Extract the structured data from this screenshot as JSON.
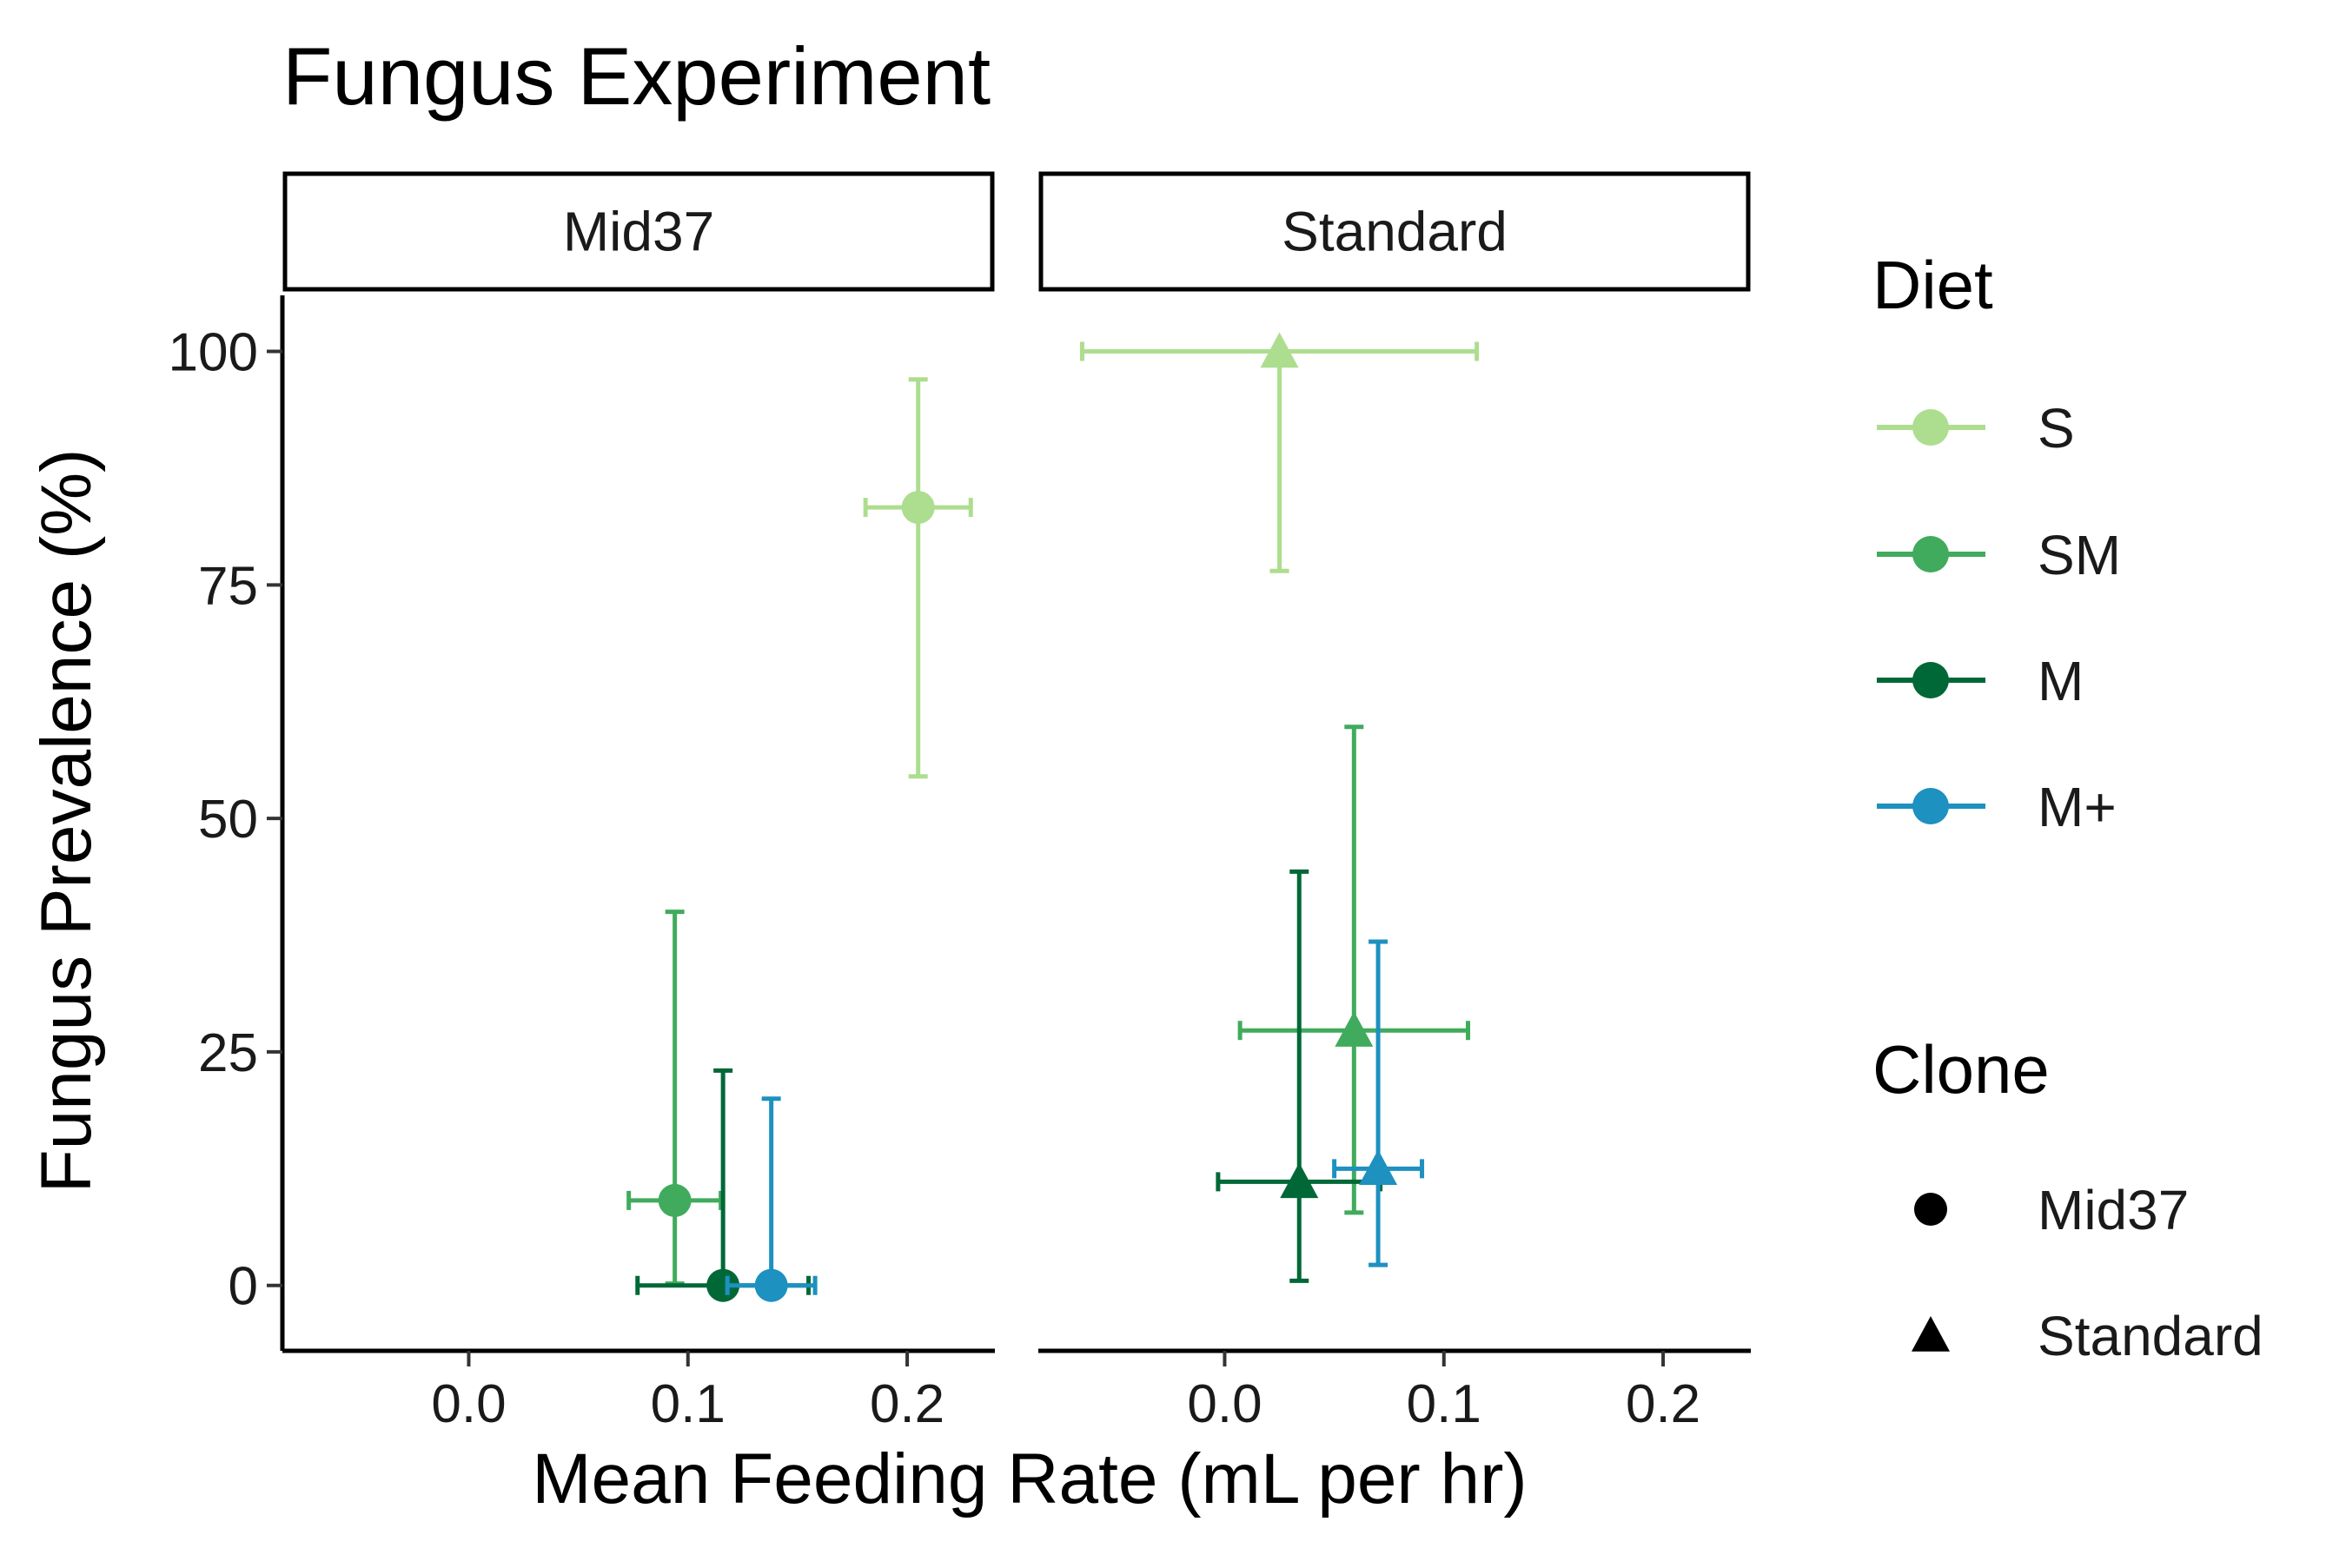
{
  "chart_data": {
    "type": "scatter",
    "title": "Fungus Experiment",
    "xlabel": "Mean Feeding Rate (mL per hr)",
    "ylabel": "Fungus Prevalence (%)",
    "xlim": [
      -0.085,
      0.24
    ],
    "ylim": [
      -7,
      106
    ],
    "xticks": [
      0.0,
      0.1,
      0.2
    ],
    "xtick_labels": [
      "0.0",
      "0.1",
      "0.2"
    ],
    "yticks": [
      0,
      25,
      50,
      75,
      100
    ],
    "ytick_labels": [
      "0",
      "25",
      "50",
      "75",
      "100"
    ],
    "grid": false,
    "facets": [
      {
        "label": "Mid37",
        "points": [
          {
            "diet": "S",
            "clone": "Mid37",
            "x": 0.205,
            "y": 83.3,
            "xmin": 0.181,
            "xmax": 0.229,
            "ymin": 54.5,
            "ymax": 97.0
          },
          {
            "diet": "SM",
            "clone": "Mid37",
            "x": 0.094,
            "y": 9.1,
            "xmin": 0.073,
            "xmax": 0.115,
            "ymin": 0.2,
            "ymax": 40.0
          },
          {
            "diet": "M",
            "clone": "Mid37",
            "x": 0.116,
            "y": 0.0,
            "xmin": 0.077,
            "xmax": 0.155,
            "ymin": 0.0,
            "ymax": 23.0
          },
          {
            "diet": "M+",
            "clone": "Mid37",
            "x": 0.138,
            "y": 0.0,
            "xmin": 0.118,
            "xmax": 0.158,
            "ymin": 0.0,
            "ymax": 20.0
          }
        ]
      },
      {
        "label": "Standard",
        "points": [
          {
            "diet": "S",
            "clone": "Standard",
            "x": 0.025,
            "y": 100.0,
            "xmin": -0.065,
            "xmax": 0.115,
            "ymin": 76.5,
            "ymax": 100.0
          },
          {
            "diet": "SM",
            "clone": "Standard",
            "x": 0.059,
            "y": 27.3,
            "xmin": 0.007,
            "xmax": 0.111,
            "ymin": 7.8,
            "ymax": 59.8
          },
          {
            "diet": "M",
            "clone": "Standard",
            "x": 0.034,
            "y": 11.1,
            "xmin": -0.003,
            "xmax": 0.071,
            "ymin": 0.5,
            "ymax": 44.3
          },
          {
            "diet": "M+",
            "clone": "Standard",
            "x": 0.07,
            "y": 12.5,
            "xmin": 0.05,
            "xmax": 0.09,
            "ymin": 2.2,
            "ymax": 36.8
          }
        ]
      }
    ],
    "diet_colors": {
      "S": "#addd8e",
      "SM": "#41ab5d",
      "M": "#006837",
      "M+": "#1d91c0"
    },
    "legend": {
      "placement": "right",
      "diet_title": "Diet",
      "diet_items": [
        "S",
        "SM",
        "M",
        "M+"
      ],
      "clone_title": "Clone",
      "clone_items": [
        {
          "label": "Mid37",
          "shape": "circle"
        },
        {
          "label": "Standard",
          "shape": "triangle"
        }
      ]
    }
  }
}
